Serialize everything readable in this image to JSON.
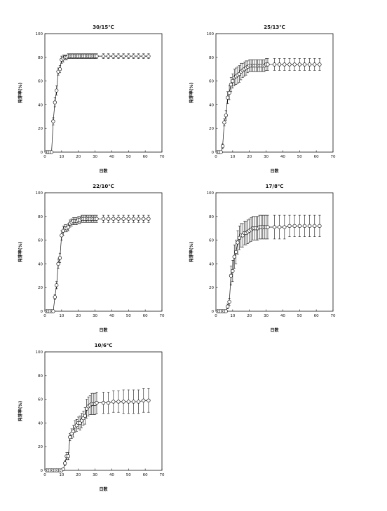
{
  "figure": {
    "background": "#ffffff",
    "ink": "#111111"
  },
  "chart_data": [
    {
      "type": "line",
      "title": "30/15℃",
      "xlabel": "日数",
      "ylabel": "発芽率(%)",
      "xlim": [
        0,
        70
      ],
      "ylim": [
        0,
        100
      ],
      "xticks": [
        0,
        10,
        20,
        30,
        40,
        50,
        60,
        70
      ],
      "yticks": [
        0,
        20,
        40,
        60,
        80,
        100
      ],
      "marker": "open-circle",
      "series": [
        {
          "x": [
            1,
            2,
            3,
            4,
            5,
            6,
            7,
            8,
            9,
            10,
            11,
            12,
            13,
            14,
            15,
            16,
            17,
            18,
            19,
            20,
            21,
            22,
            23,
            24,
            25,
            26,
            27,
            28,
            29,
            30,
            31,
            35,
            38,
            41,
            44,
            47,
            50,
            53,
            56,
            59,
            62
          ],
          "y": [
            0,
            0,
            0,
            0,
            26,
            42,
            52,
            68,
            70,
            78,
            79,
            80,
            80,
            81,
            81,
            81,
            81,
            81,
            81,
            81,
            81,
            81,
            81,
            81,
            81,
            81,
            81,
            81,
            81,
            81,
            81,
            81,
            81,
            81,
            81,
            81,
            81,
            81,
            81,
            81,
            81
          ],
          "err": [
            0,
            0,
            0,
            0,
            3,
            4,
            4,
            3,
            3,
            3,
            3,
            2,
            2,
            2,
            2,
            2,
            2,
            2,
            2,
            2,
            2,
            2,
            2,
            2,
            2,
            2,
            2,
            2,
            2,
            2,
            2,
            2,
            2,
            2,
            2,
            2,
            2,
            2,
            2,
            2,
            2
          ]
        }
      ]
    },
    {
      "type": "line",
      "title": "25/13℃",
      "xlabel": "日数",
      "ylabel": "発芽率(%)",
      "xlim": [
        0,
        70
      ],
      "ylim": [
        0,
        100
      ],
      "xticks": [
        0,
        10,
        20,
        30,
        40,
        50,
        60,
        70
      ],
      "yticks": [
        0,
        20,
        40,
        60,
        80,
        100
      ],
      "marker": "open-circle",
      "series": [
        {
          "x": [
            1,
            2,
            3,
            4,
            5,
            6,
            7,
            8,
            9,
            10,
            11,
            12,
            13,
            14,
            15,
            16,
            17,
            18,
            19,
            20,
            21,
            22,
            23,
            24,
            25,
            26,
            27,
            28,
            29,
            30,
            31,
            35,
            38,
            41,
            44,
            47,
            50,
            53,
            56,
            59,
            62
          ],
          "y": [
            0,
            0,
            0,
            5,
            25,
            31,
            46,
            50,
            57,
            60,
            63,
            64,
            65,
            66,
            68,
            69,
            70,
            71,
            72,
            73,
            73,
            73,
            73,
            73,
            73,
            73,
            73,
            73,
            73,
            74,
            74,
            74,
            74,
            74,
            74,
            74,
            74,
            74,
            74,
            74,
            74
          ],
          "err": [
            0,
            0,
            0,
            2,
            3,
            4,
            5,
            6,
            6,
            6,
            7,
            7,
            7,
            7,
            7,
            6,
            6,
            6,
            5,
            5,
            5,
            5,
            5,
            5,
            5,
            5,
            5,
            5,
            5,
            5,
            5,
            5,
            5,
            5,
            5,
            5,
            5,
            5,
            5,
            5,
            5
          ]
        }
      ]
    },
    {
      "type": "line",
      "title": "22/10℃",
      "xlabel": "日数",
      "ylabel": "発芽率(%)",
      "xlim": [
        0,
        70
      ],
      "ylim": [
        0,
        100
      ],
      "xticks": [
        0,
        10,
        20,
        30,
        40,
        50,
        60,
        70
      ],
      "yticks": [
        0,
        20,
        40,
        60,
        80,
        100
      ],
      "marker": "open-circle",
      "series": [
        {
          "x": [
            1,
            2,
            3,
            4,
            5,
            6,
            7,
            8,
            9,
            10,
            11,
            12,
            13,
            14,
            15,
            16,
            17,
            18,
            19,
            20,
            21,
            22,
            23,
            24,
            25,
            26,
            27,
            28,
            29,
            30,
            31,
            35,
            38,
            41,
            44,
            47,
            50,
            53,
            56,
            59,
            62
          ],
          "y": [
            0,
            0,
            0,
            0,
            0,
            12,
            22,
            40,
            45,
            64,
            68,
            70,
            70,
            71,
            74,
            75,
            76,
            76,
            76,
            77,
            77,
            78,
            78,
            78,
            78,
            78,
            78,
            78,
            78,
            78,
            78,
            78,
            78,
            78,
            78,
            78,
            78,
            78,
            78,
            78,
            78
          ],
          "err": [
            0,
            0,
            0,
            0,
            0,
            2,
            3,
            4,
            4,
            4,
            4,
            3,
            3,
            3,
            3,
            3,
            3,
            3,
            3,
            3,
            3,
            3,
            3,
            3,
            3,
            3,
            3,
            3,
            3,
            3,
            3,
            3,
            3,
            3,
            3,
            3,
            3,
            3,
            3,
            3,
            3
          ]
        }
      ]
    },
    {
      "type": "line",
      "title": "17/8℃",
      "xlabel": "日数",
      "ylabel": "発芽率(%)",
      "xlim": [
        0,
        70
      ],
      "ylim": [
        0,
        100
      ],
      "xticks": [
        0,
        10,
        20,
        30,
        40,
        50,
        60,
        70
      ],
      "yticks": [
        0,
        20,
        40,
        60,
        80,
        100
      ],
      "marker": "open-circle",
      "series": [
        {
          "x": [
            1,
            2,
            3,
            4,
            5,
            6,
            7,
            8,
            9,
            10,
            11,
            12,
            13,
            14,
            15,
            16,
            17,
            18,
            19,
            20,
            21,
            22,
            23,
            24,
            25,
            26,
            27,
            28,
            29,
            30,
            31,
            35,
            38,
            41,
            44,
            47,
            50,
            53,
            56,
            59,
            62
          ],
          "y": [
            0,
            0,
            0,
            0,
            0,
            0,
            4,
            8,
            30,
            34,
            46,
            50,
            58,
            62,
            64,
            64,
            66,
            66,
            67,
            68,
            69,
            70,
            70,
            70,
            70,
            71,
            71,
            71,
            71,
            71,
            71,
            71,
            71,
            71,
            72,
            72,
            72,
            72,
            72,
            72,
            72
          ],
          "err": [
            0,
            0,
            0,
            0,
            0,
            0,
            2,
            3,
            8,
            9,
            10,
            10,
            10,
            10,
            10,
            10,
            10,
            10,
            10,
            10,
            10,
            10,
            10,
            10,
            10,
            10,
            10,
            10,
            10,
            10,
            10,
            10,
            10,
            10,
            9,
            9,
            9,
            9,
            9,
            9,
            9
          ]
        }
      ]
    },
    {
      "type": "line",
      "title": "10/6℃",
      "xlabel": "日数",
      "ylabel": "発芽率(%)",
      "xlim": [
        0,
        70
      ],
      "ylim": [
        0,
        100
      ],
      "xticks": [
        0,
        10,
        20,
        30,
        40,
        50,
        60,
        70
      ],
      "yticks": [
        0,
        20,
        40,
        60,
        80,
        100
      ],
      "marker": "open-circle",
      "series": [
        {
          "x": [
            1,
            2,
            3,
            4,
            5,
            6,
            7,
            8,
            9,
            10,
            11,
            12,
            13,
            14,
            15,
            16,
            17,
            18,
            19,
            20,
            21,
            22,
            23,
            24,
            25,
            26,
            27,
            28,
            29,
            30,
            31,
            35,
            38,
            41,
            44,
            47,
            50,
            53,
            56,
            59,
            62
          ],
          "y": [
            0,
            0,
            0,
            0,
            0,
            0,
            0,
            0,
            0,
            0,
            1,
            6,
            12,
            12,
            28,
            31,
            33,
            37,
            38,
            40,
            40,
            42,
            44,
            46,
            52,
            54,
            55,
            56,
            56,
            56,
            57,
            57,
            57,
            58,
            58,
            58,
            58,
            58,
            58,
            59,
            59
          ],
          "err": [
            0,
            0,
            0,
            0,
            0,
            0,
            0,
            0,
            0,
            0,
            1,
            2,
            3,
            3,
            3,
            4,
            5,
            5,
            5,
            5,
            6,
            6,
            6,
            7,
            8,
            8,
            8,
            9,
            9,
            9,
            9,
            9,
            9,
            9,
            9,
            10,
            10,
            10,
            10,
            10,
            10
          ]
        }
      ]
    }
  ]
}
